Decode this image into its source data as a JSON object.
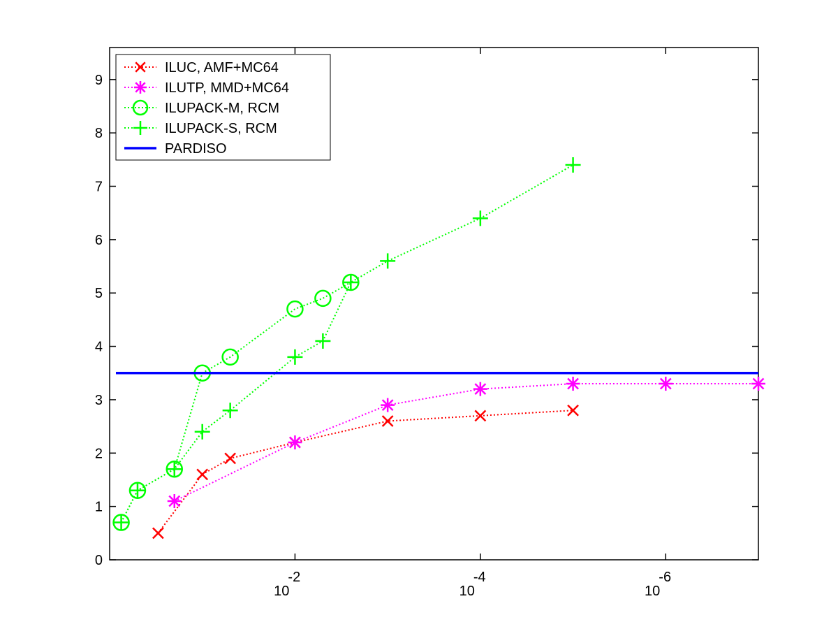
{
  "chart_data": {
    "type": "line",
    "title": "",
    "xlabel": "",
    "ylabel": "",
    "x_scale": "log10",
    "x_reversed": true,
    "xlim": [
      1,
      1e-07
    ],
    "ylim": [
      0,
      9.6
    ],
    "y_ticks": [
      0,
      1,
      2,
      3,
      4,
      5,
      6,
      7,
      8,
      9
    ],
    "x_ticks": [
      {
        "value": 0.01,
        "base": "10",
        "exponent": "-2"
      },
      {
        "value": 0.0001,
        "base": "10",
        "exponent": "-4"
      },
      {
        "value": 1e-06,
        "base": "10",
        "exponent": "-6"
      }
    ],
    "grid": false,
    "legend_position": "top-left",
    "series": [
      {
        "name": "ILUC, AMF+MC64",
        "color": "#ff0000",
        "marker": "x",
        "line": "dotted",
        "points": [
          [
            0.3,
            0.5
          ],
          [
            0.1,
            1.6
          ],
          [
            0.05,
            1.9
          ],
          [
            0.01,
            2.2
          ],
          [
            0.001,
            2.6
          ],
          [
            0.0001,
            2.7
          ],
          [
            1e-05,
            2.8
          ]
        ]
      },
      {
        "name": "ILUTP, MMD+MC64",
        "color": "#ff00ff",
        "marker": "asterisk",
        "line": "dotted",
        "points": [
          [
            0.2,
            1.1
          ],
          [
            0.01,
            2.2
          ],
          [
            0.001,
            2.9
          ],
          [
            0.0001,
            3.2
          ],
          [
            1e-05,
            3.3
          ],
          [
            1e-06,
            3.3
          ],
          [
            1e-07,
            3.3
          ]
        ]
      },
      {
        "name": "ILUPACK-M, RCM",
        "color": "#00ff00",
        "marker": "circle",
        "line": "dotted",
        "points": [
          [
            0.75,
            0.7
          ],
          [
            0.5,
            1.3
          ],
          [
            0.2,
            1.7
          ],
          [
            0.1,
            3.5
          ],
          [
            0.05,
            3.8
          ],
          [
            0.01,
            4.7
          ],
          [
            0.005,
            4.9
          ],
          [
            0.0025,
            5.2
          ]
        ]
      },
      {
        "name": "ILUPACK-S, RCM",
        "color": "#00ff00",
        "marker": "plus",
        "line": "dotted",
        "points": [
          [
            0.75,
            0.7
          ],
          [
            0.5,
            1.3
          ],
          [
            0.2,
            1.7
          ],
          [
            0.1,
            2.4
          ],
          [
            0.05,
            2.8
          ],
          [
            0.01,
            3.8
          ],
          [
            0.005,
            4.1
          ],
          [
            0.0025,
            5.2
          ],
          [
            0.001,
            5.6
          ],
          [
            0.0001,
            6.4
          ],
          [
            1e-05,
            7.4
          ]
        ]
      },
      {
        "name": "PARDISO",
        "color": "#0000ff",
        "marker": "none",
        "line": "solid",
        "hline": 3.5
      }
    ]
  }
}
